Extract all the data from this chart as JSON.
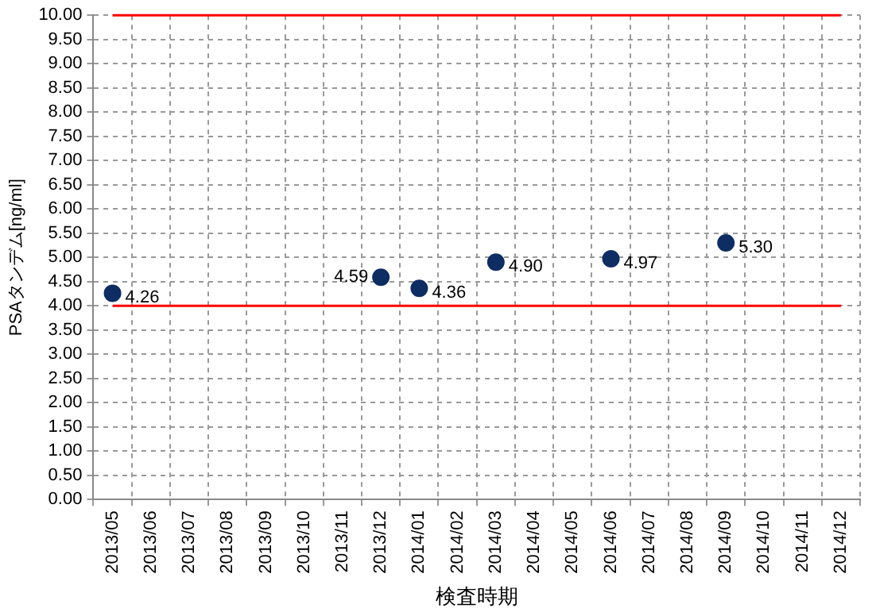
{
  "chart_data": {
    "type": "scatter",
    "xlabel": "検査時期",
    "ylabel": "PSAタンデム[ng/ml]",
    "categories": [
      "2013/05",
      "2013/06",
      "2013/07",
      "2013/08",
      "2013/09",
      "2013/10",
      "2013/11",
      "2013/12",
      "2014/01",
      "2014/02",
      "2014/03",
      "2014/04",
      "2014/05",
      "2014/06",
      "2014/07",
      "2014/08",
      "2014/09",
      "2014/10",
      "2014/11",
      "2014/12"
    ],
    "series": [
      {
        "color": "#0d2d63",
        "values": [
          4.26,
          null,
          null,
          null,
          null,
          null,
          null,
          4.59,
          4.36,
          null,
          4.9,
          null,
          null,
          4.97,
          null,
          null,
          5.3,
          null,
          null,
          null
        ],
        "value_labels": [
          "4.26",
          null,
          null,
          null,
          null,
          null,
          null,
          "4.59",
          "4.36",
          null,
          "4.90",
          null,
          null,
          "4.97",
          null,
          null,
          "5.30",
          null,
          null,
          null
        ]
      }
    ],
    "ylim": [
      0,
      10
    ],
    "yticks": [
      {
        "value": 0,
        "label": "0.00"
      },
      {
        "value": 0.5,
        "label": "0.50"
      },
      {
        "value": 1,
        "label": "1.00"
      },
      {
        "value": 1.5,
        "label": "1.50"
      },
      {
        "value": 2,
        "label": "2.00"
      },
      {
        "value": 2.5,
        "label": "2.50"
      },
      {
        "value": 3,
        "label": "3.00"
      },
      {
        "value": 3.5,
        "label": "3.50"
      },
      {
        "value": 4,
        "label": "4.00"
      },
      {
        "value": 4.5,
        "label": "4.50"
      },
      {
        "value": 5,
        "label": "5.00"
      },
      {
        "value": 5.5,
        "label": "5.50"
      },
      {
        "value": 6,
        "label": "6.00"
      },
      {
        "value": 6.5,
        "label": "6.50"
      },
      {
        "value": 7,
        "label": "7.00"
      },
      {
        "value": 7.5,
        "label": "7.50"
      },
      {
        "value": 8,
        "label": "8.00"
      },
      {
        "value": 8.5,
        "label": "8.50"
      },
      {
        "value": 9,
        "label": "9.00"
      },
      {
        "value": 9.5,
        "label": "9.50"
      },
      {
        "value": 10,
        "label": "10.00"
      }
    ],
    "ref_lines": [
      {
        "axis": "y",
        "value": 4,
        "color": "#ff0000"
      },
      {
        "axis": "y",
        "value": 10,
        "color": "#ff0000"
      }
    ],
    "grid": true,
    "legend": false,
    "marker": "circle"
  }
}
